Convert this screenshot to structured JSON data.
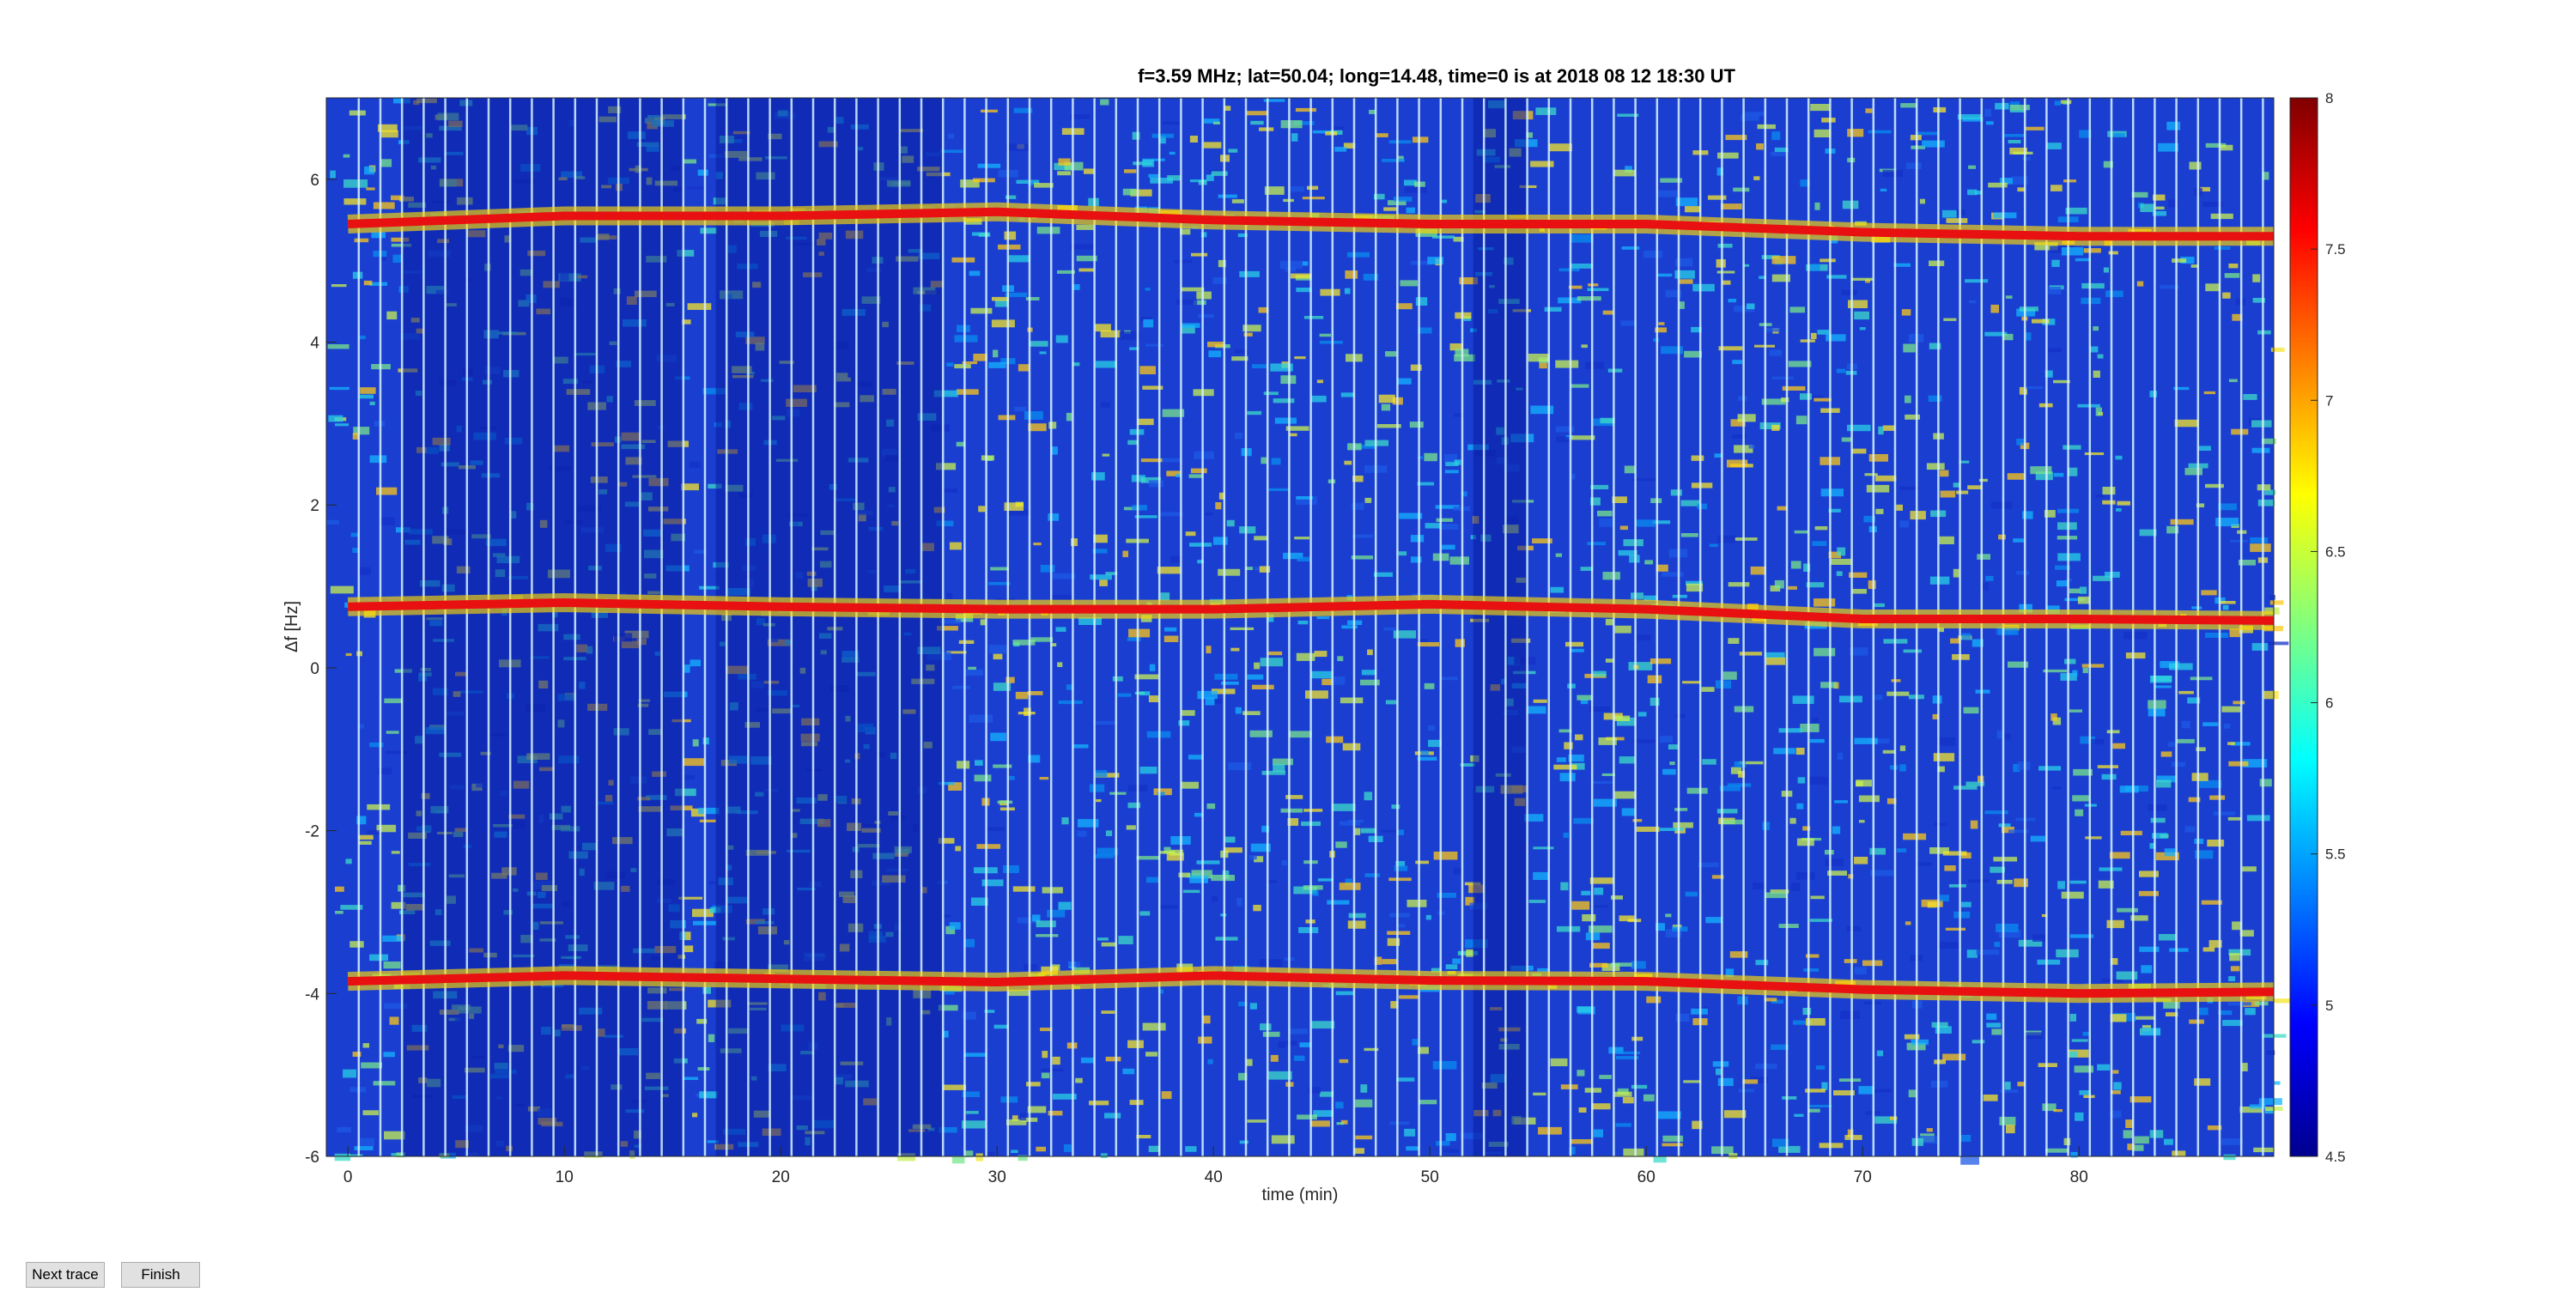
{
  "chart_data": {
    "type": "heatmap",
    "title": "f=3.59 MHz;  lat=50.04; long=14.48, time=0 is at 2018 08 12 18:30 UT",
    "xlabel": "time (min)",
    "ylabel": "Δf [Hz]",
    "xlim": [
      -1,
      89
    ],
    "ylim": [
      -6,
      7
    ],
    "xticks": [
      0,
      10,
      20,
      30,
      40,
      50,
      60,
      70,
      80
    ],
    "yticks": [
      -6,
      -4,
      -2,
      0,
      2,
      4,
      6
    ],
    "colorbar": {
      "range": [
        4.5,
        8
      ],
      "ticks": [
        "4.5",
        "5",
        "5.5",
        "6",
        "6.5",
        "7",
        "7.5",
        "8"
      ],
      "colormap": "jet"
    },
    "grid": false,
    "series": [
      {
        "points": [
          [
            0,
            0.75
          ],
          [
            10,
            0.8
          ],
          [
            20,
            0.75
          ],
          [
            30,
            0.72
          ],
          [
            40,
            0.72
          ],
          [
            50,
            0.78
          ],
          [
            60,
            0.72
          ],
          [
            70,
            0.6
          ],
          [
            80,
            0.6
          ],
          [
            89,
            0.58
          ]
        ]
      },
      {
        "points": [
          [
            0,
            -3.85
          ],
          [
            10,
            -3.78
          ],
          [
            20,
            -3.82
          ],
          [
            30,
            -3.86
          ],
          [
            40,
            -3.78
          ],
          [
            50,
            -3.84
          ],
          [
            60,
            -3.85
          ],
          [
            70,
            -3.95
          ],
          [
            80,
            -4.0
          ],
          [
            89,
            -3.98
          ]
        ]
      },
      {
        "points": [
          [
            0,
            5.45
          ],
          [
            10,
            5.55
          ],
          [
            20,
            5.55
          ],
          [
            30,
            5.6
          ],
          [
            40,
            5.5
          ],
          [
            50,
            5.45
          ],
          [
            60,
            5.45
          ],
          [
            70,
            5.35
          ],
          [
            80,
            5.3
          ],
          [
            89,
            5.3
          ]
        ]
      }
    ],
    "low_signal_regions": [
      {
        "x": [
          2.5,
          15.5
        ],
        "y": [
          -6,
          7
        ]
      },
      {
        "x": [
          17,
          27.5
        ],
        "y": [
          -6,
          7
        ]
      },
      {
        "x": [
          52,
          54.5
        ],
        "y": [
          -6,
          7
        ]
      }
    ]
  },
  "controls": {
    "next_label": "Next trace",
    "finish_label": "Finish"
  }
}
